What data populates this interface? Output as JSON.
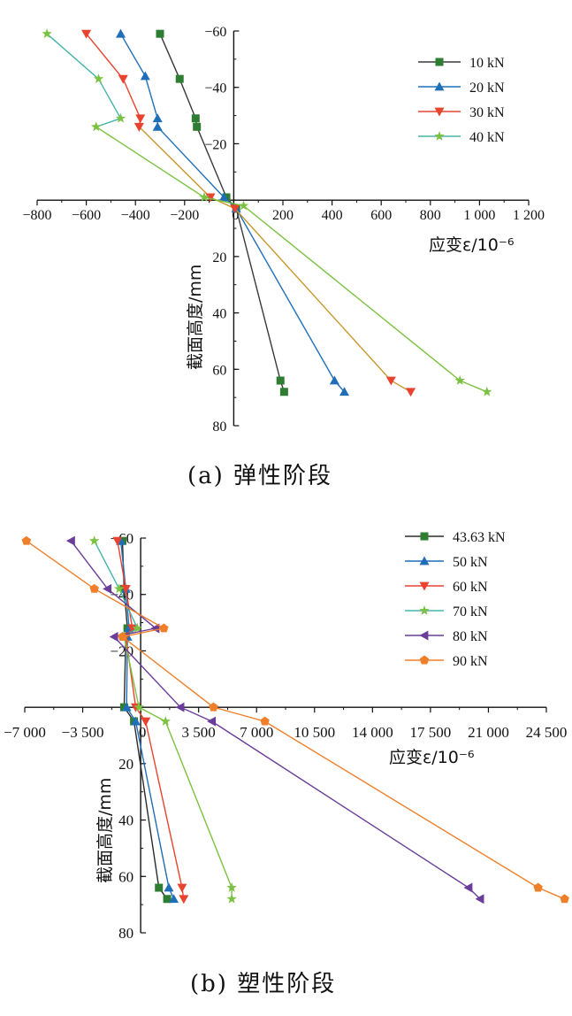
{
  "chart_data": [
    {
      "type": "line",
      "panel": "a",
      "caption": "(a) 弹性阶段",
      "xlabel": "应变ε/10⁻⁶",
      "ylabel": "截面高度/mm",
      "xlim": [
        -800,
        1200
      ],
      "ylim": [
        -60,
        80
      ],
      "y_inverted": true,
      "xticks": [
        -800,
        -600,
        -400,
        -200,
        0,
        200,
        400,
        600,
        800,
        1000,
        1200
      ],
      "xtick_labels": [
        "−800",
        "−600",
        "−400",
        "−200",
        "0",
        "200",
        "400",
        "600",
        "800",
        "1 000",
        "1 200"
      ],
      "yticks": [
        -60,
        -40,
        -20,
        20,
        40,
        60,
        80
      ],
      "ytick_labels": [
        "−60",
        "−40",
        "−20",
        "20",
        "40",
        "60",
        "80"
      ],
      "legend_position": "top-right",
      "series": [
        {
          "name": "10 kN",
          "color": "#3a3a3a",
          "marker_color": "#2e7d32",
          "marker": "square",
          "x": [
            -300,
            -220,
            -155,
            -150,
            -30,
            10,
            190,
            205
          ],
          "y": [
            -59,
            -43,
            -29,
            -26,
            -1,
            3,
            64,
            68
          ]
        },
        {
          "name": "20 kN",
          "color": "#1f6fb8",
          "marker_color": "#1f6fb8",
          "marker": "triangle-up",
          "x": [
            -460,
            -360,
            -310,
            -310,
            -40,
            10,
            410,
            450
          ],
          "y": [
            -59,
            -44,
            -29,
            -26,
            -1,
            3,
            64,
            68
          ]
        },
        {
          "name": "30 kN",
          "color": "#e8432e",
          "marker_color": "#e8432e",
          "marker": "triangle-down",
          "line_color": "#c8962a",
          "x": [
            -600,
            -450,
            -380,
            -385,
            -95,
            5,
            640,
            720
          ],
          "y": [
            -59,
            -43,
            -29,
            -26,
            -1,
            3,
            64,
            68
          ]
        },
        {
          "name": "40 kN",
          "color": "#45b5aa",
          "marker_color": "#7cc242",
          "marker": "star",
          "line_color": "#7cc242",
          "x": [
            -760,
            -550,
            -460,
            -560,
            -120,
            40,
            920,
            1030
          ],
          "y": [
            -59,
            -43,
            -29,
            -26,
            -1,
            2,
            64,
            68
          ]
        }
      ]
    },
    {
      "type": "line",
      "panel": "b",
      "caption": "(b) 塑性阶段",
      "xlabel": "应变ε/10⁻⁶",
      "ylabel": "截面高度/mm",
      "xlim": [
        -7000,
        24500
      ],
      "ylim": [
        -60,
        80
      ],
      "y_inverted": true,
      "xticks": [
        -7000,
        -3500,
        0,
        3500,
        7000,
        10500,
        14000,
        17500,
        21000,
        24500
      ],
      "xtick_labels": [
        "−7 000",
        "−3 500",
        "0",
        "3 500",
        "7 000",
        "10 500",
        "14 000",
        "17 500",
        "21 000",
        "24 500"
      ],
      "yticks": [
        -60,
        -20,
        20,
        40,
        60,
        80
      ],
      "ytick_labels": [
        "−60",
        "−20",
        "20",
        "40",
        "60",
        "80"
      ],
      "extra_tick_labels": [
        {
          "label": "−40",
          "value": -40
        }
      ],
      "legend_position": "top-right",
      "series": [
        {
          "name": "43.63 kN",
          "color": "#2b2b2b",
          "marker_color": "#2e7d32",
          "marker": "square",
          "x": [
            -1100,
            -1000,
            -800,
            -900,
            -1000,
            -400,
            1100,
            1600
          ],
          "y": [
            -59,
            -42,
            -28,
            -25,
            0,
            5,
            64,
            68
          ]
        },
        {
          "name": "50 kN",
          "color": "#1f6fb8",
          "marker_color": "#1f6fb8",
          "marker": "triangle-up",
          "x": [
            -1200,
            -900,
            -700,
            -800,
            -850,
            -300,
            1700,
            2000
          ],
          "y": [
            -59,
            -42,
            -28,
            -25,
            0,
            5,
            64,
            68
          ]
        },
        {
          "name": "60 kN",
          "color": "#e8432e",
          "marker_color": "#e8432e",
          "marker": "triangle-down",
          "x": [
            -1400,
            -900,
            -500,
            -900,
            -300,
            300,
            2500,
            2600
          ],
          "y": [
            -59,
            -42,
            -28,
            -25,
            0,
            5,
            64,
            68
          ]
        },
        {
          "name": "70 kN",
          "color": "#45b5aa",
          "marker_color": "#7cc242",
          "marker": "star",
          "line_color": "#7cc242",
          "x": [
            -2800,
            -1300,
            -200,
            -1000,
            -100,
            1500,
            5500,
            5500
          ],
          "y": [
            -59,
            -42,
            -28,
            -25,
            0,
            5,
            64,
            68
          ]
        },
        {
          "name": "80 kN",
          "color": "#6a3d9a",
          "marker_color": "#6a3d9a",
          "marker": "triangle-left",
          "x": [
            -4200,
            -2000,
            900,
            -1600,
            2400,
            4300,
            19800,
            20500
          ],
          "y": [
            -59,
            -42,
            -28,
            -25,
            0,
            5,
            64,
            68
          ]
        },
        {
          "name": "90 kN",
          "color": "#f07f2a",
          "marker_color": "#f07f2a",
          "marker": "pentagon",
          "x": [
            -6900,
            -2800,
            1400,
            -1100,
            4400,
            7500,
            24000,
            25600
          ],
          "y": [
            -59,
            -42,
            -28,
            -25,
            0,
            5,
            64,
            68
          ]
        }
      ]
    }
  ]
}
